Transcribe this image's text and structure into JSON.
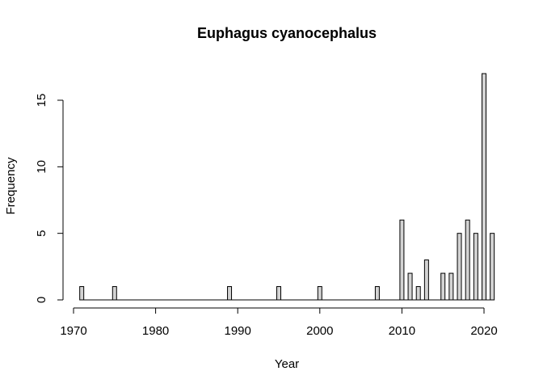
{
  "chart_data": {
    "type": "bar",
    "title": "Euphagus cyanocephalus",
    "xlabel": "Year",
    "ylabel": "Frequency",
    "xlim": [
      1970,
      2021
    ],
    "ylim": [
      0,
      17
    ],
    "x_ticks": [
      1970,
      1980,
      1990,
      2000,
      2010,
      2020
    ],
    "y_ticks": [
      0,
      5,
      10,
      15
    ],
    "bar_fill": "#d3d3d3",
    "bar_stroke": "#000000",
    "x": [
      1971,
      1972,
      1973,
      1974,
      1975,
      1976,
      1977,
      1978,
      1979,
      1980,
      1981,
      1982,
      1983,
      1984,
      1985,
      1986,
      1987,
      1988,
      1989,
      1990,
      1991,
      1992,
      1993,
      1994,
      1995,
      1996,
      1997,
      1998,
      1999,
      2000,
      2001,
      2002,
      2003,
      2004,
      2005,
      2006,
      2007,
      2008,
      2009,
      2010,
      2011,
      2012,
      2013,
      2014,
      2015,
      2016,
      2017,
      2018,
      2019,
      2020,
      2021
    ],
    "values": [
      1,
      0,
      0,
      0,
      1,
      0,
      0,
      0,
      0,
      0,
      0,
      0,
      0,
      0,
      0,
      0,
      0,
      0,
      1,
      0,
      0,
      0,
      0,
      0,
      1,
      0,
      0,
      0,
      0,
      1,
      0,
      0,
      0,
      0,
      0,
      0,
      1,
      0,
      0,
      6,
      2,
      1,
      3,
      0,
      2,
      2,
      5,
      6,
      5,
      17,
      5
    ]
  }
}
